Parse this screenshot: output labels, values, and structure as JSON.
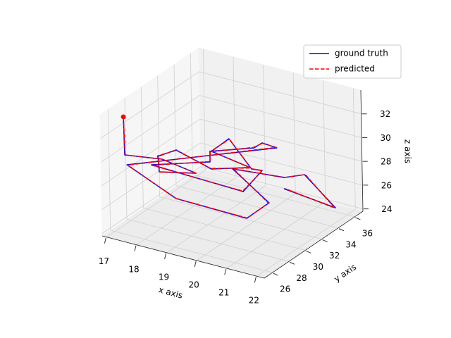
{
  "chart_data": {
    "type": "line3d",
    "xlabel": "x axis",
    "ylabel": "y axis",
    "zlabel": "z axis",
    "xlim": [
      16.85,
      22.25
    ],
    "ylim": [
      25,
      37
    ],
    "zlim": [
      23.8,
      34
    ],
    "xticks": [
      17,
      18,
      19,
      20,
      21,
      22
    ],
    "yticks": [
      26,
      28,
      30,
      32,
      34,
      36
    ],
    "zticks": [
      24,
      26,
      28,
      30,
      32
    ],
    "grid": true,
    "legend": "upper right",
    "start_marker": true,
    "series": [
      {
        "name": "ground truth",
        "color": "#0000ff",
        "linestyle": "solid",
        "x": [
          17.05,
          16.91,
          17.74,
          18.41,
          17.69,
          17.76,
          18.19,
          18.84,
          19.29,
          18.87,
          19.06,
          19.38,
          19.68,
          19.54,
          17.47,
          18.78,
          19.05,
          19.77,
          20.01,
          20.32,
          16.88,
          18.18,
          19.92,
          20.13,
          18.92,
          20.47,
          21.07,
          21.9,
          20.42
        ],
        "y": [
          27.08,
          27.66,
          29.16,
          30.82,
          28.98,
          28.6,
          29.26,
          31.11,
          34.17,
          31.05,
          32.5,
          34.02,
          34.2,
          32.38,
          28.85,
          31.19,
          30.22,
          32.93,
          33.08,
          33.71,
          28.02,
          29.21,
          31.38,
          33.36,
          33.39,
          34.05,
          34.3,
          34.96,
          34.13
        ],
        "z": [
          32.98,
          29.41,
          28.9,
          27.37,
          27.88,
          29.41,
          29.92,
          27.88,
          26.86,
          29.41,
          29.92,
          26.86,
          26.86,
          25.84,
          28.39,
          28.39,
          29.92,
          29.41,
          29.92,
          29.41,
          28.39,
          25.84,
          24.31,
          24.82,
          26.86,
          26.86,
          27.37,
          24.82,
          25.84
        ]
      },
      {
        "name": "predicted",
        "color": "#ff0000",
        "linestyle": "dashed",
        "x": [
          17.05,
          16.93,
          17.72,
          18.43,
          17.7,
          17.74,
          18.2,
          18.82,
          19.31,
          18.86,
          19.08,
          19.36,
          19.69,
          19.52,
          17.49,
          18.77,
          19.07,
          19.75,
          20.02,
          20.3,
          16.9,
          18.16,
          19.94,
          20.11,
          18.94,
          20.45,
          21.09,
          21.88,
          20.44
        ],
        "y": [
          27.08,
          27.64,
          29.18,
          30.8,
          29.0,
          28.62,
          29.24,
          31.13,
          34.15,
          31.07,
          32.48,
          34.04,
          34.18,
          32.4,
          28.83,
          31.21,
          30.2,
          32.95,
          33.06,
          33.73,
          28.04,
          29.19,
          31.4,
          33.34,
          33.41,
          34.03,
          34.32,
          34.94,
          34.15
        ],
        "z": [
          32.98,
          29.43,
          28.88,
          27.39,
          27.86,
          29.43,
          29.9,
          27.9,
          26.84,
          29.43,
          29.9,
          26.88,
          26.84,
          25.86,
          28.37,
          28.41,
          29.9,
          29.43,
          29.9,
          29.43,
          28.37,
          25.86,
          24.33,
          24.8,
          26.88,
          26.84,
          27.39,
          24.8,
          25.86
        ]
      }
    ]
  }
}
